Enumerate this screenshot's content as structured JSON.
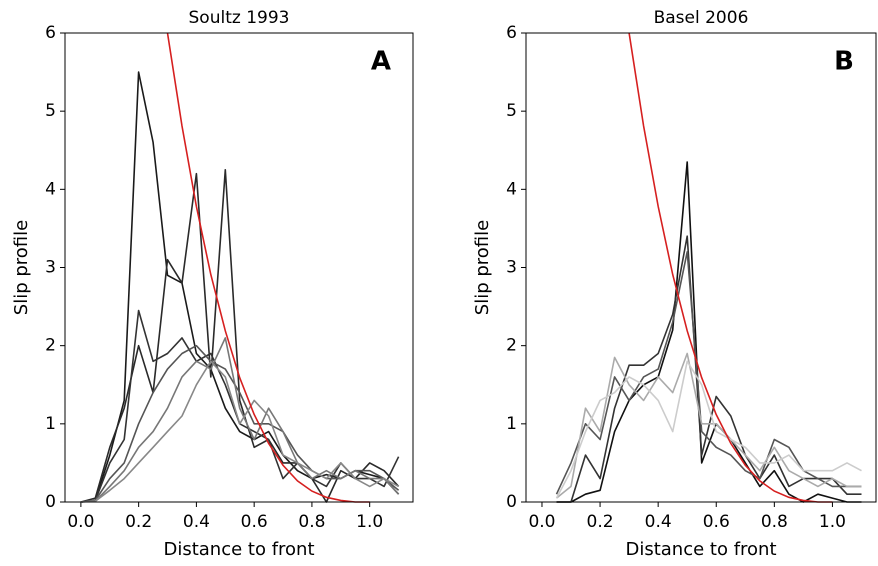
{
  "chart_data": [
    {
      "type": "line",
      "title": "Soultz 1993",
      "panel_label": "A",
      "x_label": "Distance to front",
      "y_label": "Slip profile",
      "xlim": [
        -0.055,
        1.15
      ],
      "ylim": [
        0,
        6
      ],
      "xticks": [
        {
          "value": 0,
          "label": "0.0"
        },
        0.2,
        0.4,
        0.6,
        0.8,
        {
          "value": 1,
          "label": "1.0"
        }
      ],
      "yticks": [
        0,
        1,
        2,
        3,
        4,
        5,
        6
      ],
      "x": [
        0,
        0.05,
        0.1,
        0.15,
        0.2,
        0.25,
        0.3,
        0.35,
        0.4,
        0.45,
        0.5,
        0.55,
        0.6,
        0.65,
        0.7,
        0.75,
        0.8,
        0.85,
        0.9,
        0.95,
        1.0,
        1.05,
        1.1
      ],
      "series": [
        {
          "color": "#1a1a1a",
          "values": [
            0,
            0.02,
            0.6,
            1.3,
            5.5,
            4.6,
            2.9,
            2.8,
            1.9,
            1.7,
            1.2,
            0.9,
            0.8,
            0.9,
            0.6,
            0.4,
            0.3,
            0.35,
            0.3,
            0.4,
            0.35,
            0.3,
            0.1
          ]
        },
        {
          "color": "#2a2a2a",
          "values": [
            0,
            0.05,
            0.7,
            1.2,
            2.0,
            1.4,
            3.1,
            2.8,
            4.2,
            1.6,
            4.25,
            1.3,
            0.7,
            0.8,
            0.5,
            0.5,
            0.3,
            0.0,
            0.4,
            0.3,
            0.5,
            0.4,
            0.2
          ]
        },
        {
          "color": "#333333",
          "values": [
            0,
            0.02,
            0.5,
            0.8,
            2.45,
            1.8,
            1.9,
            2.1,
            1.8,
            1.9,
            1.5,
            1.0,
            0.9,
            0.8,
            0.3,
            0.5,
            0.3,
            0.2,
            0.5,
            0.3,
            0.3,
            0.2,
            0.58
          ]
        },
        {
          "color": "#555555",
          "values": [
            0,
            0.02,
            0.3,
            0.5,
            1.0,
            1.4,
            1.7,
            1.9,
            2.0,
            1.8,
            1.7,
            1.4,
            1.0,
            1.0,
            0.9,
            0.6,
            0.4,
            0.3,
            0.3,
            0.4,
            0.4,
            0.3,
            0.15
          ]
        },
        {
          "color": "#777777",
          "values": [
            0,
            0.01,
            0.2,
            0.4,
            0.7,
            0.9,
            1.2,
            1.6,
            1.8,
            1.7,
            2.1,
            1.2,
            0.8,
            1.2,
            0.9,
            0.5,
            0.3,
            0.4,
            0.3,
            0.4,
            0.3,
            0.3,
            0.1
          ]
        },
        {
          "color": "#888888",
          "values": [
            0,
            0.01,
            0.15,
            0.3,
            0.5,
            0.7,
            0.9,
            1.1,
            1.5,
            1.8,
            1.6,
            1.0,
            1.3,
            1.1,
            0.6,
            0.5,
            0.4,
            0.3,
            0.5,
            0.3,
            0.2,
            0.3,
            0.2
          ]
        }
      ],
      "curve": {
        "color": "#d62020",
        "x": [
          0.3,
          0.35,
          0.4,
          0.45,
          0.5,
          0.55,
          0.6,
          0.65,
          0.7,
          0.75,
          0.8,
          0.85,
          0.9,
          0.95,
          1.0
        ],
        "values": [
          6.0,
          4.81,
          3.78,
          2.91,
          2.19,
          1.59,
          1.12,
          0.75,
          0.47,
          0.27,
          0.14,
          0.06,
          0.02,
          0.0,
          0
        ]
      }
    },
    {
      "type": "line",
      "title": "Basel 2006",
      "panel_label": "B",
      "x_label": "Distance to front",
      "y_label": "Slip profile",
      "xlim": [
        -0.055,
        1.15
      ],
      "ylim": [
        0,
        6
      ],
      "xticks": [
        {
          "value": 0,
          "label": "0.0"
        },
        0.2,
        0.4,
        0.6,
        0.8,
        {
          "value": 1,
          "label": "1.0"
        }
      ],
      "yticks": [
        0,
        1,
        2,
        3,
        4,
        5,
        6
      ],
      "x": [
        0,
        0.05,
        0.1,
        0.15,
        0.2,
        0.25,
        0.3,
        0.35,
        0.4,
        0.45,
        0.5,
        0.55,
        0.6,
        0.65,
        0.7,
        0.75,
        0.8,
        0.85,
        0.9,
        0.95,
        1.0,
        1.05,
        1.1
      ],
      "series": [
        {
          "color": "#111111",
          "values": [
            null,
            0,
            0,
            0.1,
            0.15,
            0.9,
            1.3,
            1.5,
            1.6,
            2.2,
            4.35,
            0.5,
            1.0,
            0.8,
            0.5,
            0.2,
            0.4,
            0.1,
            0.0,
            0.1,
            0.05,
            0.0,
            0.0
          ]
        },
        {
          "color": "#333333",
          "values": [
            null,
            0.0,
            0.0,
            0.6,
            0.3,
            1.2,
            1.75,
            1.75,
            1.9,
            2.4,
            3.4,
            0.6,
            1.35,
            1.1,
            0.6,
            0.3,
            0.6,
            0.2,
            0.3,
            0.3,
            0.3,
            0.1,
            0.1
          ]
        },
        {
          "color": "#555555",
          "values": [
            null,
            0.1,
            0.5,
            1.0,
            0.8,
            1.6,
            1.3,
            1.6,
            1.7,
            2.3,
            3.2,
            0.9,
            0.7,
            0.6,
            0.4,
            0.3,
            0.8,
            0.7,
            0.4,
            0.3,
            0.2,
            0.2,
            0.2
          ]
        },
        {
          "color": "#aaaaaa",
          "values": [
            null,
            0.05,
            0.2,
            1.2,
            0.9,
            1.85,
            1.5,
            1.3,
            1.6,
            1.4,
            1.9,
            1.0,
            1.0,
            0.8,
            0.6,
            0.4,
            0.7,
            0.4,
            0.3,
            0.2,
            0.3,
            0.2,
            0.2
          ]
        },
        {
          "color": "#cccccc",
          "values": [
            null,
            0.05,
            0.4,
            0.9,
            1.3,
            1.4,
            1.6,
            1.5,
            1.3,
            0.9,
            1.8,
            1.5,
            0.9,
            0.8,
            0.7,
            0.5,
            0.5,
            0.6,
            0.4,
            0.4,
            0.4,
            0.5,
            0.4
          ]
        }
      ],
      "curve": {
        "color": "#d62020",
        "x": [
          0.3,
          0.35,
          0.4,
          0.45,
          0.5,
          0.55,
          0.6,
          0.65,
          0.7,
          0.75,
          0.8,
          0.85,
          0.9,
          0.95,
          1.0
        ],
        "values": [
          6.0,
          4.81,
          3.78,
          2.91,
          2.19,
          1.59,
          1.12,
          0.75,
          0.47,
          0.27,
          0.14,
          0.06,
          0.02,
          0.0,
          0
        ]
      }
    }
  ]
}
